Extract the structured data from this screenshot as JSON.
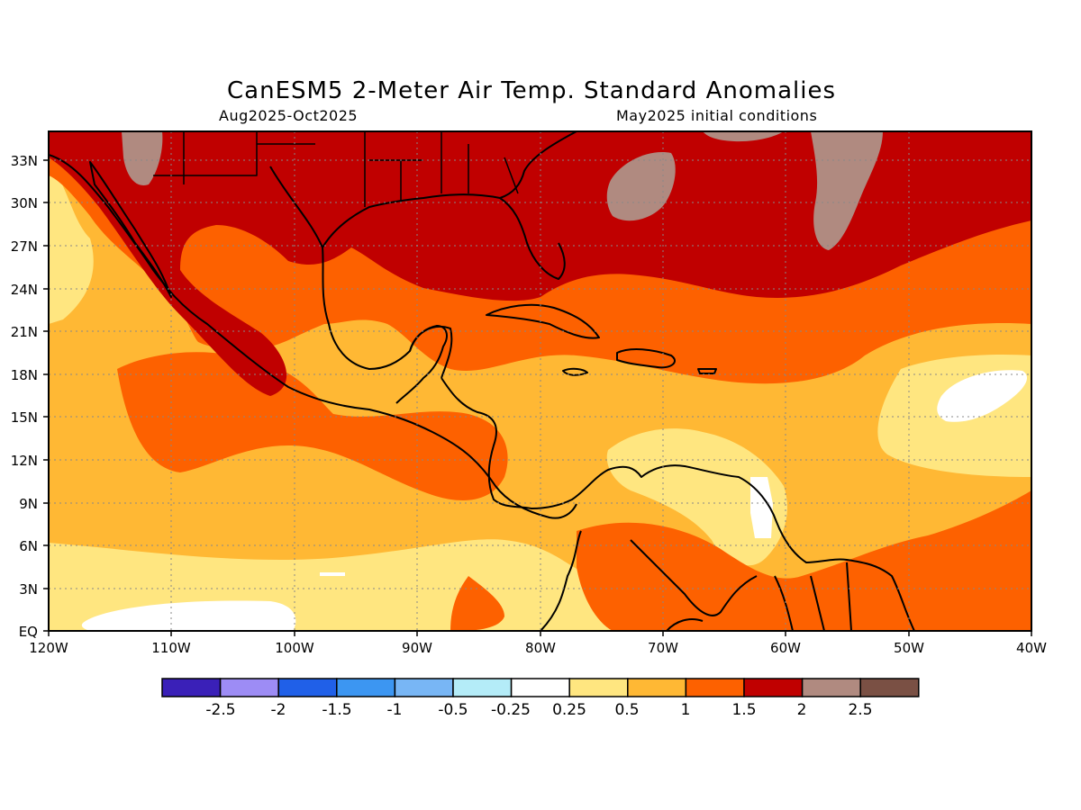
{
  "header": {
    "title": "CanESM5 2-Meter Air Temp. Standard Anomalies",
    "period": "Aug2025-Oct2025",
    "init": "May2025 initial conditions"
  },
  "axes": {
    "lat_labels": [
      "EQ",
      "3N",
      "6N",
      "9N",
      "12N",
      "15N",
      "18N",
      "21N",
      "24N",
      "27N",
      "30N",
      "33N"
    ],
    "lon_labels": [
      "120W",
      "110W",
      "100W",
      "90W",
      "80W",
      "70W",
      "60W",
      "50W",
      "40W"
    ]
  },
  "colorbar": {
    "colors": [
      "#3a20b8",
      "#9d8cf5",
      "#2060e8",
      "#3c96f2",
      "#78b6f5",
      "#b4ecf8",
      "#ffffff",
      "#ffe680",
      "#ffb834",
      "#fd6100",
      "#c00000",
      "#b08a80",
      "#7a5044"
    ],
    "labels": [
      "-2.5",
      "-2",
      "-1.5",
      "-1",
      "-0.5",
      "-0.25",
      "0.25",
      "0.5",
      "1",
      "1.5",
      "2",
      "2.5"
    ]
  },
  "map": {
    "region": "Caribbean / Gulf of Mexico",
    "lon_range": [
      "120W",
      "40W"
    ],
    "lat_range": [
      "EQ",
      "35N"
    ],
    "grid": "dotted",
    "fill_colors": {
      "level_025_05": "#ffe680",
      "level_05_1": "#ffb834",
      "level_1_15": "#fd6100",
      "level_15_2": "#c00000",
      "level_2_25": "#b08a80",
      "level_below_025": "#ffffff"
    }
  }
}
